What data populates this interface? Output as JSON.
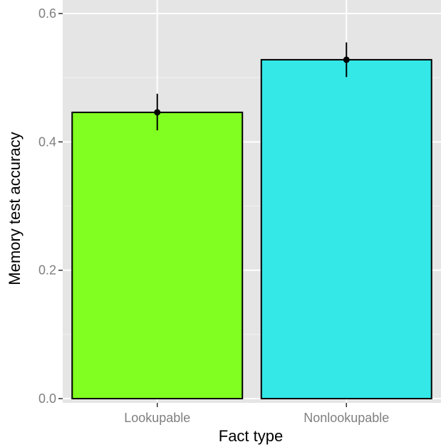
{
  "chart_data": {
    "type": "bar",
    "categories": [
      "Lookupable",
      "Nonlookupable"
    ],
    "values": [
      0.446,
      0.528
    ],
    "error_bars": [
      [
        0.418,
        0.475
      ],
      [
        0.501,
        0.555
      ]
    ],
    "xlabel": "Fact type",
    "ylabel": "Memory test accuracy",
    "ylim": [
      0.0,
      0.6
    ],
    "y_ticks": [
      "0.0",
      "0.2",
      "0.4",
      "0.6"
    ],
    "grid": true,
    "colors": {
      "panel_background": "#e5e5e5",
      "grid_major": "#ffffff",
      "grid_minor": "#f2f2f2",
      "bars": [
        "#80ff20",
        "#33e8e6"
      ],
      "bar_outline": "#000000",
      "tick_text": "#7f7f7f"
    }
  }
}
